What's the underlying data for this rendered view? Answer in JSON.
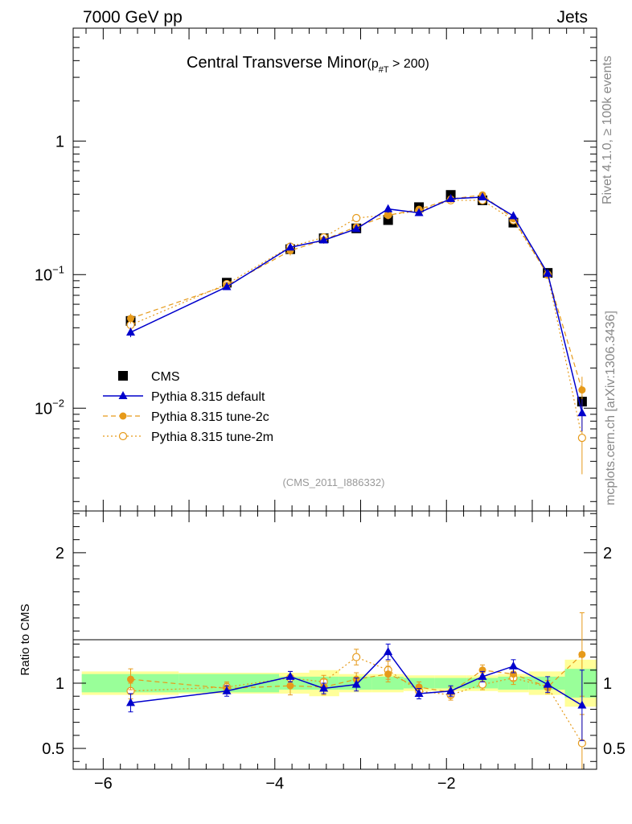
{
  "header": {
    "left": "7000 GeV pp",
    "right": "Jets"
  },
  "side_labels": {
    "rivet": "Rivet 4.1.0, ≥ 100k events",
    "mcplots": "mcplots.cern.ch [arXiv:1306.3436]"
  },
  "colors": {
    "cms": "#000000",
    "default": "#0000cc",
    "tune2c": "#e69a1a",
    "tune2m": "#e69a1a",
    "band_inner": "#99ff99",
    "band_outer": "#ffff99"
  },
  "chart_data": [
    {
      "type": "scatter",
      "panel": "main",
      "title_main": "Central Transverse Minor",
      "title_sub": "(p",
      "title_sub_index": "#T",
      "title_sub_tail": "  > 200)",
      "watermark": "(CMS_2011_I886332)",
      "xlim": [
        -6.35,
        -0.25
      ],
      "ylim": [
        0.0017,
        7.0
      ],
      "yscale": "log",
      "yticks": [
        {
          "value": 1,
          "base": "1",
          "exp": ""
        },
        {
          "value": 0.1,
          "base": "10",
          "exp": "−1"
        },
        {
          "value": 0.01,
          "base": "10",
          "exp": "−2"
        }
      ],
      "x": [
        -5.68,
        -4.56,
        -3.82,
        -3.43,
        -3.05,
        -2.68,
        -2.32,
        -1.95,
        -1.58,
        -1.22,
        -0.82,
        -0.42
      ],
      "legend": [
        "CMS",
        "Pythia 8.315 default",
        "Pythia 8.315 tune-2c",
        "Pythia 8.315 tune-2m"
      ],
      "series": [
        {
          "name": "CMS",
          "values": [
            0.045,
            0.087,
            0.155,
            0.187,
            0.222,
            0.256,
            0.32,
            0.395,
            0.36,
            0.245,
            0.103,
            0.0112
          ],
          "errors": [
            0.004,
            0.005,
            0.008,
            0.01,
            0.01,
            0.012,
            0.014,
            0.016,
            0.016,
            0.012,
            0.006,
            0.0012
          ]
        },
        {
          "name": "Pythia 8.315 default",
          "values": [
            0.037,
            0.081,
            0.16,
            0.181,
            0.22,
            0.31,
            0.29,
            0.37,
            0.38,
            0.275,
            0.102,
            0.0092
          ],
          "errors": [
            0.003,
            0.003,
            0.006,
            0.007,
            0.01,
            0.02,
            0.012,
            0.014,
            0.015,
            0.014,
            0.005,
            0.0025
          ]
        },
        {
          "name": "Pythia 8.315 tune-2c",
          "values": [
            0.047,
            0.083,
            0.151,
            0.182,
            0.228,
            0.278,
            0.308,
            0.368,
            0.395,
            0.262,
            0.099,
            0.0137
          ],
          "errors": [
            0.004,
            0.003,
            0.012,
            0.012,
            0.012,
            0.018,
            0.014,
            0.014,
            0.015,
            0.013,
            0.005,
            0.0035
          ]
        },
        {
          "name": "Pythia 8.315 tune-2m",
          "values": [
            0.042,
            0.085,
            0.162,
            0.19,
            0.265,
            0.28,
            0.3,
            0.36,
            0.36,
            0.255,
            0.1,
            0.006
          ],
          "errors": [
            0.003,
            0.004,
            0.008,
            0.01,
            0.014,
            0.02,
            0.015,
            0.015,
            0.016,
            0.014,
            0.006,
            0.0028
          ]
        }
      ]
    },
    {
      "type": "line",
      "panel": "ratio",
      "ylabel": "Ratio to CMS",
      "xlim": [
        -6.35,
        -0.25
      ],
      "ylim": [
        0.34,
        2.32
      ],
      "yticks": [
        0.5,
        1,
        2
      ],
      "xticks": [
        -6,
        -4,
        -2
      ],
      "xtick_labels": [
        "−6",
        "−4",
        "−2"
      ],
      "ytick_labels": [
        "0.5",
        "1",
        "2"
      ],
      "bins": [
        -6.25,
        -5.12,
        -3.95,
        -3.6,
        -3.25,
        -2.87,
        -2.5,
        -2.14,
        -1.76,
        -1.4,
        -1.04,
        -0.62,
        -0.25
      ],
      "band_inner": [
        0.07,
        0.07,
        0.05,
        0.05,
        0.05,
        0.05,
        0.04,
        0.04,
        0.04,
        0.05,
        0.05,
        0.11
      ],
      "band_outer": [
        0.09,
        0.08,
        0.08,
        0.1,
        0.07,
        0.07,
        0.06,
        0.06,
        0.06,
        0.07,
        0.09,
        0.18
      ],
      "x": [
        -5.68,
        -4.56,
        -3.82,
        -3.43,
        -3.05,
        -2.68,
        -2.32,
        -1.95,
        -1.58,
        -1.22,
        -0.82,
        -0.42
      ],
      "series": [
        {
          "name": "Pythia 8.315 default",
          "values": [
            0.85,
            0.94,
            1.05,
            0.96,
            0.99,
            1.24,
            0.92,
            0.94,
            1.05,
            1.13,
            0.99,
            0.83
          ],
          "errors": [
            0.07,
            0.04,
            0.04,
            0.04,
            0.05,
            0.06,
            0.04,
            0.04,
            0.04,
            0.05,
            0.06,
            0.27
          ]
        },
        {
          "name": "Pythia 8.315 tune-2c",
          "values": [
            1.03,
            0.96,
            0.98,
            0.97,
            1.03,
            1.07,
            0.97,
            0.93,
            1.1,
            1.07,
            0.97,
            1.22
          ],
          "errors": [
            0.08,
            0.04,
            0.07,
            0.06,
            0.05,
            0.06,
            0.04,
            0.04,
            0.04,
            0.05,
            0.05,
            0.32
          ]
        },
        {
          "name": "Pythia 8.315 tune-2m",
          "values": [
            0.94,
            0.97,
            1.04,
            1.01,
            1.2,
            1.1,
            0.94,
            0.91,
            0.99,
            1.04,
            0.97,
            0.54
          ],
          "errors": [
            0.06,
            0.04,
            0.05,
            0.05,
            0.06,
            0.07,
            0.04,
            0.04,
            0.04,
            0.05,
            0.05,
            0.22
          ]
        }
      ]
    }
  ]
}
